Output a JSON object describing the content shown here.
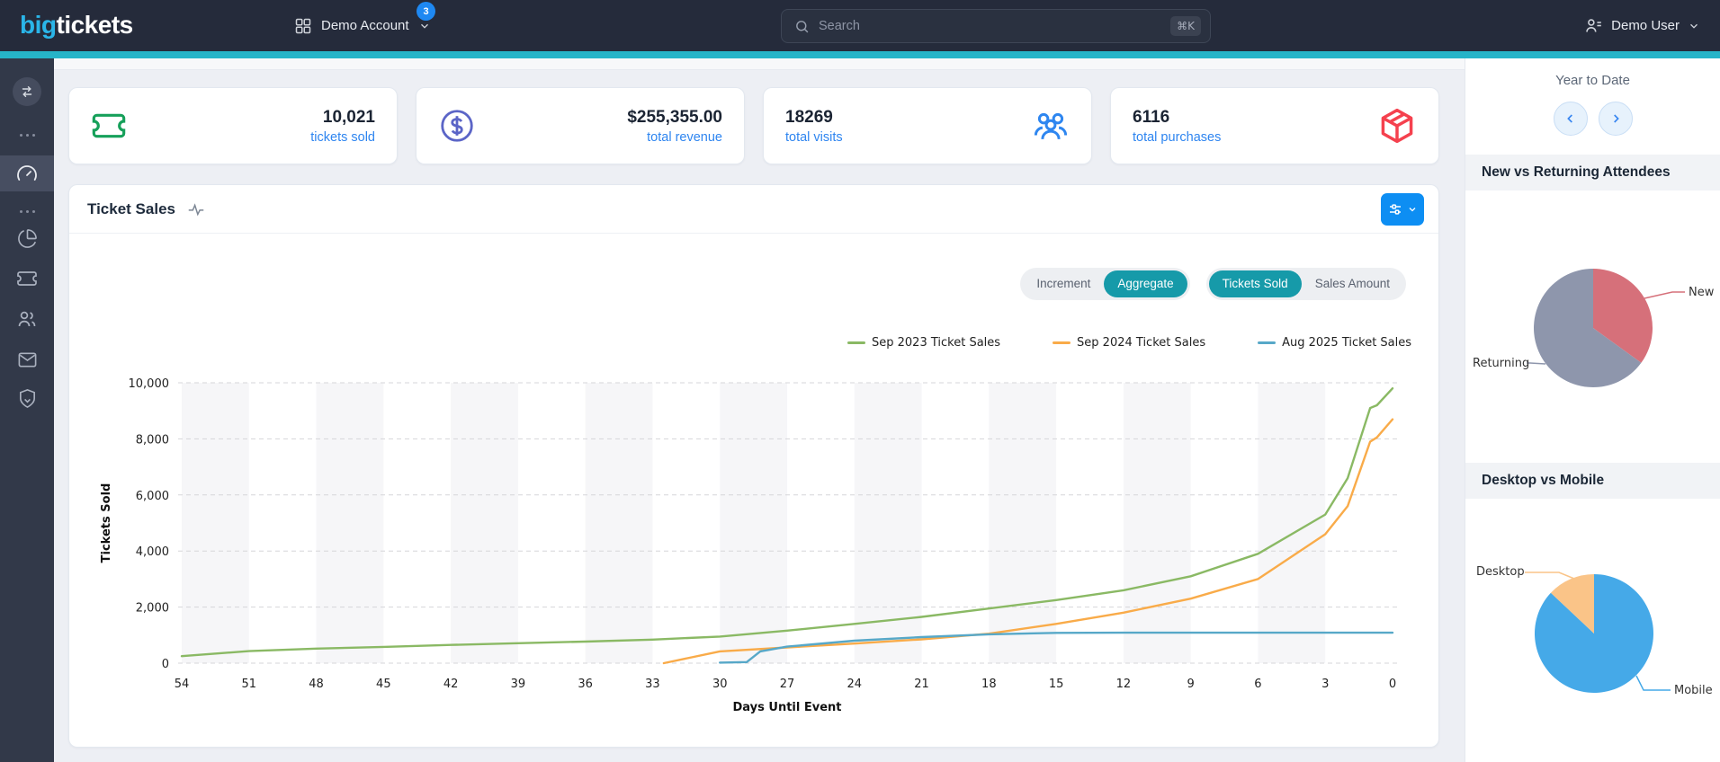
{
  "navbar": {
    "logo": {
      "part1": "big",
      "part2": "tickets"
    },
    "account": {
      "label": "Demo Account",
      "badge": "3"
    },
    "search": {
      "placeholder": "Search",
      "shortcut": "⌘K"
    },
    "user": {
      "label": "Demo User"
    }
  },
  "sidebar": {
    "icons": [
      "swap",
      "ellipsis",
      "dashboard",
      "ellipsis",
      "pie-chart",
      "ticket",
      "users",
      "mail",
      "shield"
    ],
    "active": "dashboard"
  },
  "stats": [
    {
      "value": "10,021",
      "label": "tickets sold",
      "icon": "ticket",
      "icon_color": "#16a05a"
    },
    {
      "value": "$255,355.00",
      "label": "total revenue",
      "icon": "circle-dollar",
      "icon_color": "#5b65c7"
    },
    {
      "value": "18269",
      "label": "total visits",
      "icon": "users-group",
      "icon_color": "#2e86f0"
    },
    {
      "value": "6116",
      "label": "total purchases",
      "icon": "package",
      "icon_color": "#f5414e"
    }
  ],
  "ticket_sales_panel": {
    "title": "Ticket Sales",
    "toggles": [
      {
        "options": [
          "Increment",
          "Aggregate"
        ],
        "active": "Aggregate"
      },
      {
        "options": [
          "Tickets Sold",
          "Sales Amount"
        ],
        "active": "Tickets Sold"
      }
    ],
    "toggle_active_color": "#169aa9",
    "settings_button_color": "#0d8ef3"
  },
  "right_panel": {
    "period_label": "Year to Date",
    "sections": [
      {
        "title": "New vs Returning Attendees"
      },
      {
        "title": "Desktop vs Mobile"
      }
    ]
  },
  "chart_data": [
    {
      "type": "line",
      "title": "Ticket Sales",
      "xlabel": "Days Until Event",
      "ylabel": "Tickets Sold",
      "xlim": [
        54,
        0
      ],
      "ylim": [
        0,
        10000
      ],
      "x_ticks": [
        54,
        51,
        48,
        45,
        42,
        39,
        36,
        33,
        30,
        27,
        24,
        21,
        18,
        15,
        12,
        9,
        6,
        3,
        0
      ],
      "y_ticks": [
        0,
        2000,
        4000,
        6000,
        8000,
        10000
      ],
      "y_tick_labels": [
        "0",
        "2,000",
        "4,000",
        "6,000",
        "8,000",
        "10,000"
      ],
      "grid": "dashed horizontal lines + alternating vertical bands",
      "legend_position": "top",
      "series": [
        {
          "name": "Sep 2023 Ticket Sales",
          "color": "#8ab964",
          "points": [
            [
              54,
              250
            ],
            [
              51,
              430
            ],
            [
              48,
              520
            ],
            [
              45,
              580
            ],
            [
              42,
              650
            ],
            [
              39,
              710
            ],
            [
              36,
              770
            ],
            [
              33,
              840
            ],
            [
              30,
              950
            ],
            [
              27,
              1160
            ],
            [
              24,
              1400
            ],
            [
              21,
              1650
            ],
            [
              18,
              1950
            ],
            [
              15,
              2250
            ],
            [
              12,
              2600
            ],
            [
              9,
              3100
            ],
            [
              6,
              3900
            ],
            [
              3,
              5300
            ],
            [
              2,
              6600
            ],
            [
              1,
              9100
            ],
            [
              0.7,
              9200
            ],
            [
              0,
              9800
            ]
          ]
        },
        {
          "name": "Sep 2024 Ticket Sales",
          "color": "#f9ab49",
          "points": [
            [
              32.5,
              0
            ],
            [
              30,
              420
            ],
            [
              27,
              560
            ],
            [
              24,
              700
            ],
            [
              21,
              850
            ],
            [
              18,
              1050
            ],
            [
              15,
              1400
            ],
            [
              12,
              1800
            ],
            [
              9,
              2300
            ],
            [
              6,
              3000
            ],
            [
              3,
              4600
            ],
            [
              2,
              5600
            ],
            [
              1,
              7900
            ],
            [
              0.7,
              8050
            ],
            [
              0,
              8700
            ]
          ]
        },
        {
          "name": "Aug 2025 Ticket Sales",
          "color": "#57a8c8",
          "points": [
            [
              30,
              20
            ],
            [
              28.8,
              40
            ],
            [
              28.2,
              420
            ],
            [
              27,
              590
            ],
            [
              24,
              800
            ],
            [
              21,
              930
            ],
            [
              18,
              1030
            ],
            [
              15,
              1080
            ],
            [
              12,
              1085
            ],
            [
              9,
              1085
            ],
            [
              6,
              1085
            ],
            [
              3,
              1085
            ],
            [
              0,
              1085
            ]
          ]
        }
      ]
    },
    {
      "type": "pie",
      "title": "New vs Returning Attendees",
      "slices": [
        {
          "label": "New",
          "value": 35,
          "color": "#d6707a"
        },
        {
          "label": "Returning",
          "value": 65,
          "color": "#8e96ac"
        }
      ]
    },
    {
      "type": "pie",
      "title": "Desktop vs Mobile",
      "slices": [
        {
          "label": "Mobile",
          "value": 87,
          "color": "#45a9e8"
        },
        {
          "label": "Desktop",
          "value": 13,
          "color": "#fac488"
        }
      ]
    }
  ]
}
